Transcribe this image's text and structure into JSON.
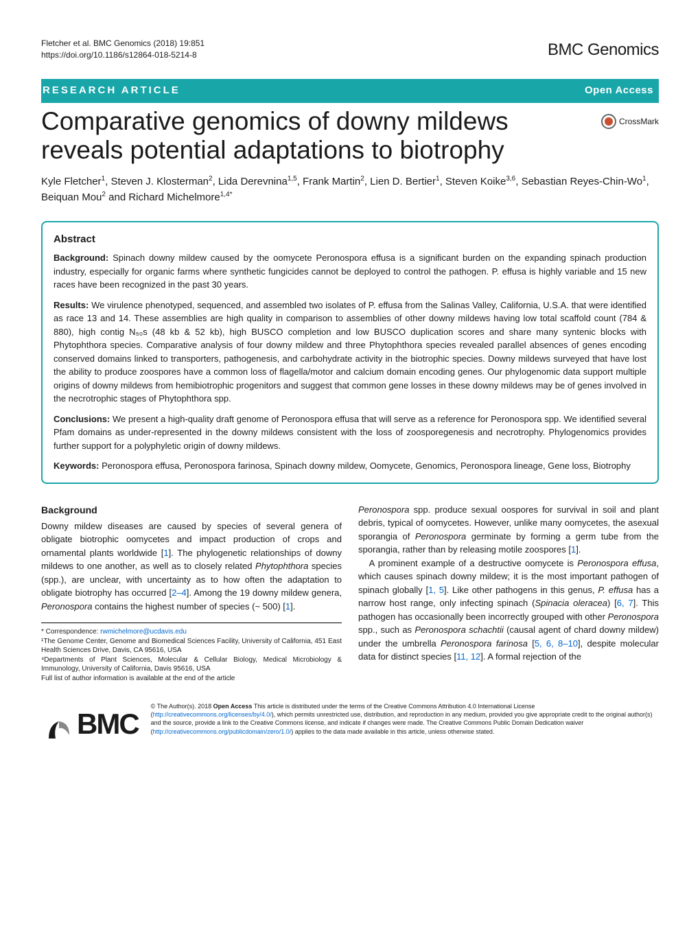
{
  "meta": {
    "citation": "Fletcher et al. BMC Genomics      (2018) 19:851",
    "doi": "https://doi.org/10.1186/s12864-018-5214-8",
    "journal": "BMC Genomics"
  },
  "banner": {
    "type": "RESEARCH ARTICLE",
    "access": "Open Access"
  },
  "crossmark": "CrossMark",
  "title": "Comparative genomics of downy mildews reveals potential adaptations to biotrophy",
  "authors_html": "Kyle Fletcher<sup>1</sup>, Steven J. Klosterman<sup>2</sup>, Lida Derevnina<sup>1,5</sup>, Frank Martin<sup>2</sup>, Lien D. Bertier<sup>1</sup>, Steven Koike<sup>3,6</sup>, Sebastian Reyes-Chin-Wo<sup>1</sup>, Beiquan Mou<sup>2</sup> and Richard Michelmore<sup>1,4*</sup>",
  "abstract": {
    "heading": "Abstract",
    "background_label": "Background:",
    "background": " Spinach downy mildew caused by the oomycete Peronospora effusa is a significant burden on the expanding spinach production industry, especially for organic farms where synthetic fungicides cannot be deployed to control the pathogen. P. effusa is highly variable and 15 new races have been recognized in the past 30 years.",
    "results_label": "Results:",
    "results": " We virulence phenotyped, sequenced, and assembled two isolates of P. effusa from the Salinas Valley, California, U.S.A. that were identified as race 13 and 14. These assemblies are high quality in comparison to assemblies of other downy mildews having low total scaffold count (784 & 880), high contig N₅₀s (48 kb & 52 kb), high BUSCO completion and low BUSCO duplication scores and share many syntenic blocks with Phytophthora species. Comparative analysis of four downy mildew and three Phytophthora species revealed parallel absences of genes encoding conserved domains linked to transporters, pathogenesis, and carbohydrate activity in the biotrophic species. Downy mildews surveyed that have lost the ability to produce zoospores have a common loss of flagella/motor and calcium domain encoding genes. Our phylogenomic data support multiple origins of downy mildews from hemibiotrophic progenitors and suggest that common gene losses in these downy mildews may be of genes involved in the necrotrophic stages of Phytophthora spp.",
    "conclusions_label": "Conclusions:",
    "conclusions": " We present a high-quality draft genome of Peronospora effusa that will serve as a reference for Peronospora spp. We identified several Pfam domains as under-represented in the downy mildews consistent with the loss of zoosporegenesis and necrotrophy. Phylogenomics provides further support for a polyphyletic origin of downy mildews.",
    "keywords_label": "Keywords:",
    "keywords": " Peronospora effusa, Peronospora farinosa, Spinach downy mildew, Oomycete, Genomics, Peronospora lineage, Gene loss, Biotrophy"
  },
  "body": {
    "background_heading": "Background",
    "col1_p1": "Downy mildew diseases are caused by species of several genera of obligate biotrophic oomycetes and impact production of crops and ornamental plants worldwide [1]. The phylogenetic relationships of downy mildews to one another, as well as to closely related Phytophthora species (spp.), are unclear, with uncertainty as to how often the adaptation to obligate biotrophy has occurred [2–4]. Among the 19 downy mildew genera, Peronospora contains the highest number of species (~ 500) [1].",
    "col2_p1": "Peronospora spp. produce sexual oospores for survival in soil and plant debris, typical of oomycetes. However, unlike many oomycetes, the asexual sporangia of Peronospora germinate by forming a germ tube from the sporangia, rather than by releasing motile zoospores [1].",
    "col2_p2": "A prominent example of a destructive oomycete is Peronospora effusa, which causes spinach downy mildew; it is the most important pathogen of spinach globally [1, 5]. Like other pathogens in this genus, P. effusa has a narrow host range, only infecting spinach (Spinacia oleracea) [6, 7]. This pathogen has occasionally been incorrectly grouped with other Peronospora spp., such as Peronospora schachtii (causal agent of chard downy mildew) under the umbrella Peronospora farinosa [5, 6, 8–10], despite molecular data for distinct species [11, 12]. A formal rejection of the"
  },
  "footnotes": {
    "correspondence_label": "* Correspondence: ",
    "email": "rwmichelmore@ucdavis.edu",
    "aff1": "¹The Genome Center, Genome and Biomedical Sciences Facility, University of California, 451 East Health Sciences Drive, Davis, CA 95616, USA",
    "aff4": "⁴Departments of Plant Sciences, Molecular & Cellular Biology, Medical Microbiology & Immunology, University of California, Davis 95616, USA",
    "full_list": "Full list of author information is available at the end of the article"
  },
  "footer": {
    "bmc": "BMC",
    "license": "© The Author(s). 2018 Open Access This article is distributed under the terms of the Creative Commons Attribution 4.0 International License (http://creativecommons.org/licenses/by/4.0/), which permits unrestricted use, distribution, and reproduction in any medium, provided you give appropriate credit to the original author(s) and the source, provide a link to the Creative Commons license, and indicate if changes were made. The Creative Commons Public Domain Dedication waiver (http://creativecommons.org/publicdomain/zero/1.0/) applies to the data made available in this article, unless otherwise stated."
  },
  "colors": {
    "teal": "#18a6a9",
    "link": "#0066cc",
    "crossmark_dot": "#c94f2e"
  }
}
